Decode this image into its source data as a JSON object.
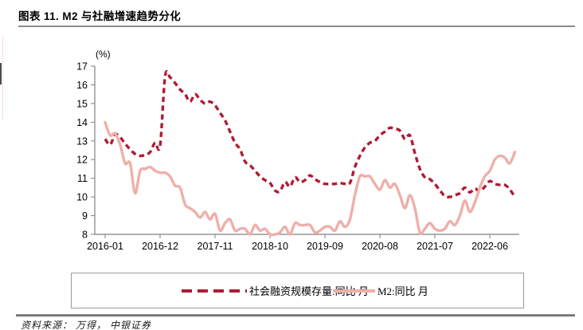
{
  "header": {
    "title": "图表 11. M2 与社融增速趋势分化"
  },
  "footer": {
    "source": "资料来源： 万得， 中银证券"
  },
  "colors": {
    "sofi_dark_red": "#ae1c33",
    "m2_pink": "#efafa9",
    "axis_gray": "#808080"
  },
  "chart_data": {
    "type": "line",
    "unit_label": "(%)",
    "ylim": [
      8,
      17
    ],
    "y_ticks": [
      8,
      9,
      10,
      11,
      12,
      13,
      14,
      15,
      16,
      17
    ],
    "x_tick_labels": [
      "2016-01",
      "2016-12",
      "2017-11",
      "2018-10",
      "2019-09",
      "2020-08",
      "2021-07",
      "2022-06"
    ],
    "x_tick_month_idx": [
      0,
      11,
      22,
      33,
      44,
      55,
      66,
      77
    ],
    "x_range": [
      "2016-01",
      "2022-11"
    ],
    "grid": false,
    "legend_position": "bottom-box",
    "axis_color": "#808080",
    "series": [
      {
        "id": "sofi",
        "name": "社会融资规模存量:同比 月",
        "style": "dashed",
        "color": "#ae1c33",
        "values": [
          13.1,
          12.8,
          13.35,
          13.2,
          12.85,
          12.55,
          12.3,
          12.2,
          12.25,
          12.4,
          12.9,
          12.75,
          16.45,
          16.4,
          16.1,
          15.75,
          15.5,
          15.1,
          15.5,
          15.2,
          15.0,
          15.1,
          14.9,
          14.5,
          14.1,
          13.5,
          12.9,
          12.55,
          11.9,
          11.7,
          11.4,
          11.1,
          10.9,
          10.75,
          10.35,
          10.3,
          10.8,
          10.55,
          11.05,
          10.8,
          10.9,
          11.15,
          10.95,
          10.8,
          10.7,
          10.7,
          10.7,
          10.75,
          10.7,
          10.75,
          11.6,
          12.2,
          12.65,
          12.9,
          13.0,
          13.3,
          13.5,
          13.7,
          13.65,
          13.55,
          13.1,
          13.3,
          12.35,
          11.5,
          11.05,
          10.95,
          10.7,
          10.35,
          10.05,
          10.0,
          10.1,
          10.2,
          10.5,
          10.25,
          10.45,
          10.3,
          10.55,
          10.85,
          10.7,
          10.65,
          10.65,
          10.4,
          10.0
        ]
      },
      {
        "id": "m2",
        "name": "M2:同比 月",
        "style": "solid",
        "color": "#efafa9",
        "values": [
          14.0,
          13.3,
          13.4,
          12.8,
          11.8,
          11.8,
          10.2,
          11.4,
          11.5,
          11.6,
          11.4,
          11.3,
          11.3,
          11.1,
          10.6,
          10.5,
          9.6,
          9.4,
          9.2,
          8.9,
          9.2,
          8.8,
          9.1,
          8.2,
          8.6,
          8.8,
          8.2,
          8.3,
          8.3,
          8.0,
          8.5,
          8.2,
          8.3,
          8.0,
          8.0,
          8.1,
          8.4,
          8.0,
          8.6,
          8.5,
          8.5,
          8.5,
          8.1,
          8.2,
          8.4,
          8.4,
          8.2,
          8.7,
          8.4,
          8.8,
          10.1,
          11.1,
          11.1,
          11.1,
          10.7,
          10.4,
          10.9,
          10.5,
          10.7,
          10.1,
          9.4,
          10.1,
          9.4,
          8.1,
          8.3,
          8.6,
          8.3,
          8.2,
          8.3,
          8.7,
          8.5,
          9.0,
          9.8,
          9.2,
          9.7,
          10.5,
          11.1,
          11.4,
          12.0,
          12.2,
          12.1,
          11.8,
          12.4
        ]
      }
    ]
  }
}
